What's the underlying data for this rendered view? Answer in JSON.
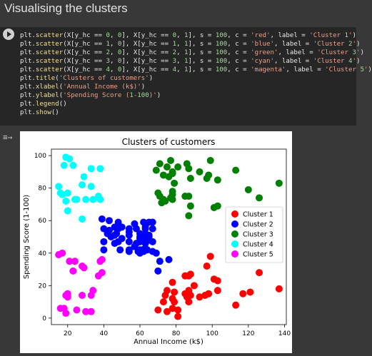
{
  "section": {
    "title": "Visualising the clusters"
  },
  "code_lines": [
    "plt.scatter(X[y_hc == 0, 0], X[y_hc == 0, 1], s = 100, c = 'red', label = 'Cluster 1')",
    "plt.scatter(X[y_hc == 1, 0], X[y_hc == 1, 1], s = 100, c = 'blue', label = 'Cluster 2')",
    "plt.scatter(X[y_hc == 2, 0], X[y_hc == 2, 1], s = 100, c = 'green', label = 'Cluster 3')",
    "plt.scatter(X[y_hc == 3, 0], X[y_hc == 3, 1], s = 100, c = 'cyan', label = 'Cluster 4')",
    "plt.scatter(X[y_hc == 4, 0], X[y_hc == 4, 1], s = 100, c = 'magenta', label = 'Cluster 5')",
    "plt.title('Clusters of customers')",
    "plt.xlabel('Annual Income (k$)')",
    "plt.ylabel('Spending Score (1-100)')",
    "plt.legend()",
    "plt.show()"
  ],
  "chart_data": {
    "type": "scatter",
    "title": "Clusters of customers",
    "xlabel": "Annual Income (k$)",
    "ylabel": "Spending Score (1-100)",
    "xlim": [
      11,
      141
    ],
    "ylim": [
      -4,
      104
    ],
    "xticks": [
      20,
      40,
      60,
      80,
      100,
      120,
      140
    ],
    "yticks": [
      0,
      20,
      40,
      60,
      80,
      100
    ],
    "legend_position": "center-right",
    "grid": false,
    "series": [
      {
        "name": "Cluster 1",
        "color": "#ff0000",
        "points": [
          [
            70,
            5
          ],
          [
            73,
            10
          ],
          [
            74,
            14
          ],
          [
            75,
            4
          ],
          [
            75,
            17
          ],
          [
            78,
            22
          ],
          [
            78,
            12
          ],
          [
            78,
            6
          ],
          [
            79,
            10
          ],
          [
            79,
            16
          ],
          [
            81,
            1
          ],
          [
            81,
            5
          ],
          [
            85,
            26
          ],
          [
            85,
            15
          ],
          [
            86,
            13
          ],
          [
            87,
            10
          ],
          [
            87,
            17
          ],
          [
            87,
            26
          ],
          [
            88,
            14
          ],
          [
            88,
            27
          ],
          [
            90,
            20
          ],
          [
            93,
            13
          ],
          [
            96,
            14
          ],
          [
            97,
            32
          ],
          [
            98,
            15
          ],
          [
            99,
            38
          ],
          [
            101,
            24
          ],
          [
            103,
            23
          ],
          [
            103,
            17
          ],
          [
            113,
            8
          ],
          [
            117,
            15
          ],
          [
            121,
            16
          ],
          [
            126,
            28
          ],
          [
            137,
            18
          ]
        ]
      },
      {
        "name": "Cluster 2",
        "color": "#0000ff",
        "points": [
          [
            39,
            61
          ],
          [
            40,
            55
          ],
          [
            40,
            47
          ],
          [
            40,
            42
          ],
          [
            42,
            52
          ],
          [
            43,
            54
          ],
          [
            43,
            60
          ],
          [
            44,
            50
          ],
          [
            46,
            51
          ],
          [
            46,
            46
          ],
          [
            46,
            56
          ],
          [
            47,
            52
          ],
          [
            48,
            59
          ],
          [
            48,
            47
          ],
          [
            48,
            55
          ],
          [
            49,
            42
          ],
          [
            50,
            49
          ],
          [
            50,
            56
          ],
          [
            54,
            47
          ],
          [
            54,
            53
          ],
          [
            54,
            42
          ],
          [
            54,
            51
          ],
          [
            54,
            55
          ],
          [
            54,
            41
          ],
          [
            57,
            44
          ],
          [
            57,
            58
          ],
          [
            58,
            46
          ],
          [
            58,
            55
          ],
          [
            59,
            41
          ],
          [
            60,
            49
          ],
          [
            60,
            40
          ],
          [
            60,
            42
          ],
          [
            60,
            52
          ],
          [
            60,
            47
          ],
          [
            60,
            50
          ],
          [
            61,
            42
          ],
          [
            62,
            49
          ],
          [
            62,
            41
          ],
          [
            62,
            48
          ],
          [
            62,
            59
          ],
          [
            63,
            55
          ],
          [
            63,
            56
          ],
          [
            63,
            46
          ],
          [
            63,
            43
          ],
          [
            63,
            48
          ],
          [
            63,
            52
          ],
          [
            64,
            42
          ],
          [
            65,
            51
          ],
          [
            65,
            59
          ],
          [
            65,
            50
          ],
          [
            65,
            48
          ],
          [
            67,
            59
          ],
          [
            67,
            47
          ],
          [
            67,
            55
          ],
          [
            67,
            41
          ],
          [
            69,
            40
          ],
          [
            70,
            29
          ],
          [
            71,
            35
          ],
          [
            76,
            36
          ]
        ]
      },
      {
        "name": "Cluster 3",
        "color": "#008000",
        "points": [
          [
            69,
            91
          ],
          [
            70,
            77
          ],
          [
            71,
            95
          ],
          [
            71,
            75
          ],
          [
            72,
            71
          ],
          [
            73,
            88
          ],
          [
            73,
            73
          ],
          [
            74,
            72
          ],
          [
            75,
            93
          ],
          [
            76,
            87
          ],
          [
            77,
            74
          ],
          [
            77,
            97
          ],
          [
            78,
            90
          ],
          [
            78,
            76
          ],
          [
            78,
            89
          ],
          [
            78,
            78
          ],
          [
            78,
            73
          ],
          [
            79,
            83
          ],
          [
            81,
            93
          ],
          [
            85,
            75
          ],
          [
            86,
            95
          ],
          [
            87,
            63
          ],
          [
            87,
            75
          ],
          [
            87,
            92
          ],
          [
            88,
            86
          ],
          [
            88,
            69
          ],
          [
            93,
            90
          ],
          [
            97,
            86
          ],
          [
            98,
            88
          ],
          [
            99,
            97
          ],
          [
            101,
            68
          ],
          [
            103,
            85
          ],
          [
            103,
            69
          ],
          [
            113,
            91
          ],
          [
            120,
            79
          ],
          [
            126,
            74
          ],
          [
            137,
            83
          ]
        ]
      },
      {
        "name": "Cluster 4",
        "color": "#00ffff",
        "points": [
          [
            15,
            81
          ],
          [
            16,
            77
          ],
          [
            17,
            76
          ],
          [
            18,
            94
          ],
          [
            19,
            99
          ],
          [
            19,
            72
          ],
          [
            20,
            66
          ],
          [
            20,
            77
          ],
          [
            21,
            98
          ],
          [
            23,
            94
          ],
          [
            24,
            73
          ],
          [
            25,
            73
          ],
          [
            28,
            82
          ],
          [
            28,
            61
          ],
          [
            29,
            87
          ],
          [
            30,
            73
          ],
          [
            33,
            92
          ],
          [
            33,
            81
          ],
          [
            34,
            73
          ],
          [
            37,
            75
          ],
          [
            38,
            92
          ],
          [
            38,
            73
          ]
        ]
      },
      {
        "name": "Cluster 5",
        "color": "#ff00ff",
        "points": [
          [
            15,
            39
          ],
          [
            16,
            6
          ],
          [
            17,
            40
          ],
          [
            18,
            6
          ],
          [
            19,
            3
          ],
          [
            19,
            14
          ],
          [
            20,
            15
          ],
          [
            20,
            13
          ],
          [
            21,
            35
          ],
          [
            23,
            29
          ],
          [
            24,
            35
          ],
          [
            25,
            5
          ],
          [
            28,
            14
          ],
          [
            28,
            32
          ],
          [
            29,
            31
          ],
          [
            30,
            4
          ],
          [
            33,
            4
          ],
          [
            33,
            14
          ],
          [
            34,
            17
          ],
          [
            37,
            26
          ],
          [
            38,
            35
          ],
          [
            39,
            36
          ],
          [
            39,
            28
          ]
        ]
      }
    ]
  }
}
